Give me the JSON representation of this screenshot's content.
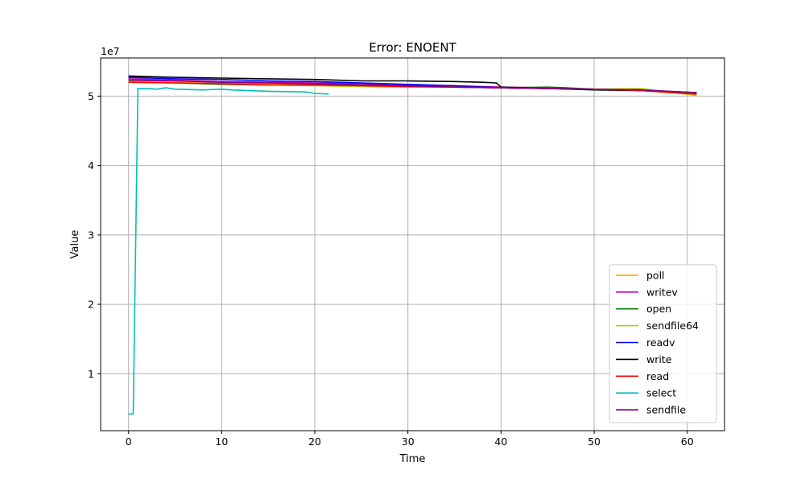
{
  "chart_data": {
    "type": "line",
    "title": "Error: ENOENT",
    "xlabel": "Time",
    "ylabel": "Value",
    "y_scale_label": "1e7",
    "xlim": [
      -3,
      64
    ],
    "ylim": [
      1800000,
      55500000
    ],
    "x_ticks": [
      0,
      10,
      20,
      30,
      40,
      50,
      60
    ],
    "x_tick_labels": [
      "0",
      "10",
      "20",
      "30",
      "40",
      "50",
      "60"
    ],
    "y_ticks": [
      10000000,
      20000000,
      30000000,
      40000000,
      50000000
    ],
    "y_tick_labels": [
      "1",
      "2",
      "3",
      "4",
      "5"
    ],
    "grid": true,
    "legend_position": "bottom-right",
    "series": [
      {
        "name": "poll",
        "color": "#ffa500",
        "points": [
          [
            0,
            52200000
          ],
          [
            5,
            52000000
          ],
          [
            10,
            51800000
          ],
          [
            15,
            51800000
          ],
          [
            20,
            51700000
          ],
          [
            25,
            51500000
          ],
          [
            30,
            51500000
          ],
          [
            35,
            51400000
          ],
          [
            40,
            51300000
          ],
          [
            45,
            51200000
          ],
          [
            50,
            51000000
          ],
          [
            55,
            50800000
          ],
          [
            61,
            50200000
          ]
        ]
      },
      {
        "name": "writev",
        "color": "#bf00bf",
        "points": [
          [
            0,
            52500000
          ],
          [
            5,
            52300000
          ],
          [
            10,
            52100000
          ],
          [
            15,
            52000000
          ],
          [
            20,
            51900000
          ],
          [
            25,
            51800000
          ],
          [
            30,
            51600000
          ],
          [
            35,
            51500000
          ],
          [
            40,
            51300000
          ],
          [
            45,
            51200000
          ],
          [
            50,
            51000000
          ],
          [
            55,
            50800000
          ],
          [
            61,
            50500000
          ]
        ]
      },
      {
        "name": "open",
        "color": "#008000",
        "points": [
          [
            0,
            52000000
          ],
          [
            5,
            51900000
          ],
          [
            10,
            51700000
          ],
          [
            15,
            51600000
          ],
          [
            20,
            51600000
          ],
          [
            25,
            51500000
          ],
          [
            30,
            51400000
          ],
          [
            35,
            51300000
          ],
          [
            40,
            51200000
          ],
          [
            45,
            51300000
          ],
          [
            47,
            51200000
          ],
          [
            50,
            51000000
          ],
          [
            55,
            51000000
          ],
          [
            61,
            50300000
          ]
        ]
      },
      {
        "name": "sendfile64",
        "color": "#bfbf00",
        "points": [
          [
            0,
            52100000
          ],
          [
            5,
            51900000
          ],
          [
            10,
            51800000
          ],
          [
            15,
            51600000
          ],
          [
            20,
            51500000
          ],
          [
            25,
            51400000
          ],
          [
            30,
            51300000
          ],
          [
            35,
            51300000
          ],
          [
            40,
            51200000
          ],
          [
            45,
            51100000
          ],
          [
            50,
            51000000
          ],
          [
            55,
            51100000
          ],
          [
            61,
            50100000
          ]
        ]
      },
      {
        "name": "readv",
        "color": "#0000ff",
        "points": [
          [
            0,
            52700000
          ],
          [
            5,
            52500000
          ],
          [
            10,
            52400000
          ],
          [
            15,
            52200000
          ],
          [
            20,
            52100000
          ],
          [
            25,
            51900000
          ],
          [
            30,
            51700000
          ],
          [
            35,
            51500000
          ],
          [
            40,
            51200000
          ],
          [
            45,
            51100000
          ],
          [
            50,
            51000000
          ],
          [
            55,
            50800000
          ],
          [
            61,
            50500000
          ]
        ]
      },
      {
        "name": "write",
        "color": "#000000",
        "points": [
          [
            0,
            52900000
          ],
          [
            5,
            52700000
          ],
          [
            10,
            52600000
          ],
          [
            15,
            52500000
          ],
          [
            20,
            52400000
          ],
          [
            25,
            52200000
          ],
          [
            30,
            52200000
          ],
          [
            35,
            52100000
          ],
          [
            38,
            52000000
          ],
          [
            39.5,
            51900000
          ],
          [
            40,
            51300000
          ],
          [
            45,
            51100000
          ],
          [
            50,
            50900000
          ],
          [
            55,
            50800000
          ],
          [
            61,
            50400000
          ]
        ]
      },
      {
        "name": "read",
        "color": "#ff0000",
        "points": [
          [
            0,
            52000000
          ],
          [
            5,
            51900000
          ],
          [
            10,
            51800000
          ],
          [
            15,
            51600000
          ],
          [
            20,
            51600000
          ],
          [
            25,
            51500000
          ],
          [
            30,
            51400000
          ],
          [
            35,
            51300000
          ],
          [
            40,
            51200000
          ],
          [
            45,
            51100000
          ],
          [
            50,
            51000000
          ],
          [
            55,
            50800000
          ],
          [
            61,
            50300000
          ]
        ]
      },
      {
        "name": "select",
        "color": "#00bfbf",
        "points": [
          [
            0,
            4200000
          ],
          [
            0.5,
            4200000
          ],
          [
            1,
            51100000
          ],
          [
            2,
            51100000
          ],
          [
            3,
            51000000
          ],
          [
            4,
            51200000
          ],
          [
            5,
            51000000
          ],
          [
            8,
            50900000
          ],
          [
            10,
            51000000
          ],
          [
            11,
            50900000
          ],
          [
            15,
            50700000
          ],
          [
            19,
            50600000
          ],
          [
            20,
            50400000
          ],
          [
            21.5,
            50300000
          ]
        ]
      },
      {
        "name": "sendfile",
        "color": "#800080",
        "points": [
          [
            0,
            52300000
          ],
          [
            5,
            52200000
          ],
          [
            10,
            52000000
          ],
          [
            15,
            51900000
          ],
          [
            20,
            51800000
          ],
          [
            25,
            51600000
          ],
          [
            30,
            51500000
          ],
          [
            35,
            51300000
          ],
          [
            40,
            51200000
          ],
          [
            45,
            51100000
          ],
          [
            50,
            51000000
          ],
          [
            55,
            50900000
          ],
          [
            61,
            50500000
          ]
        ]
      }
    ]
  }
}
